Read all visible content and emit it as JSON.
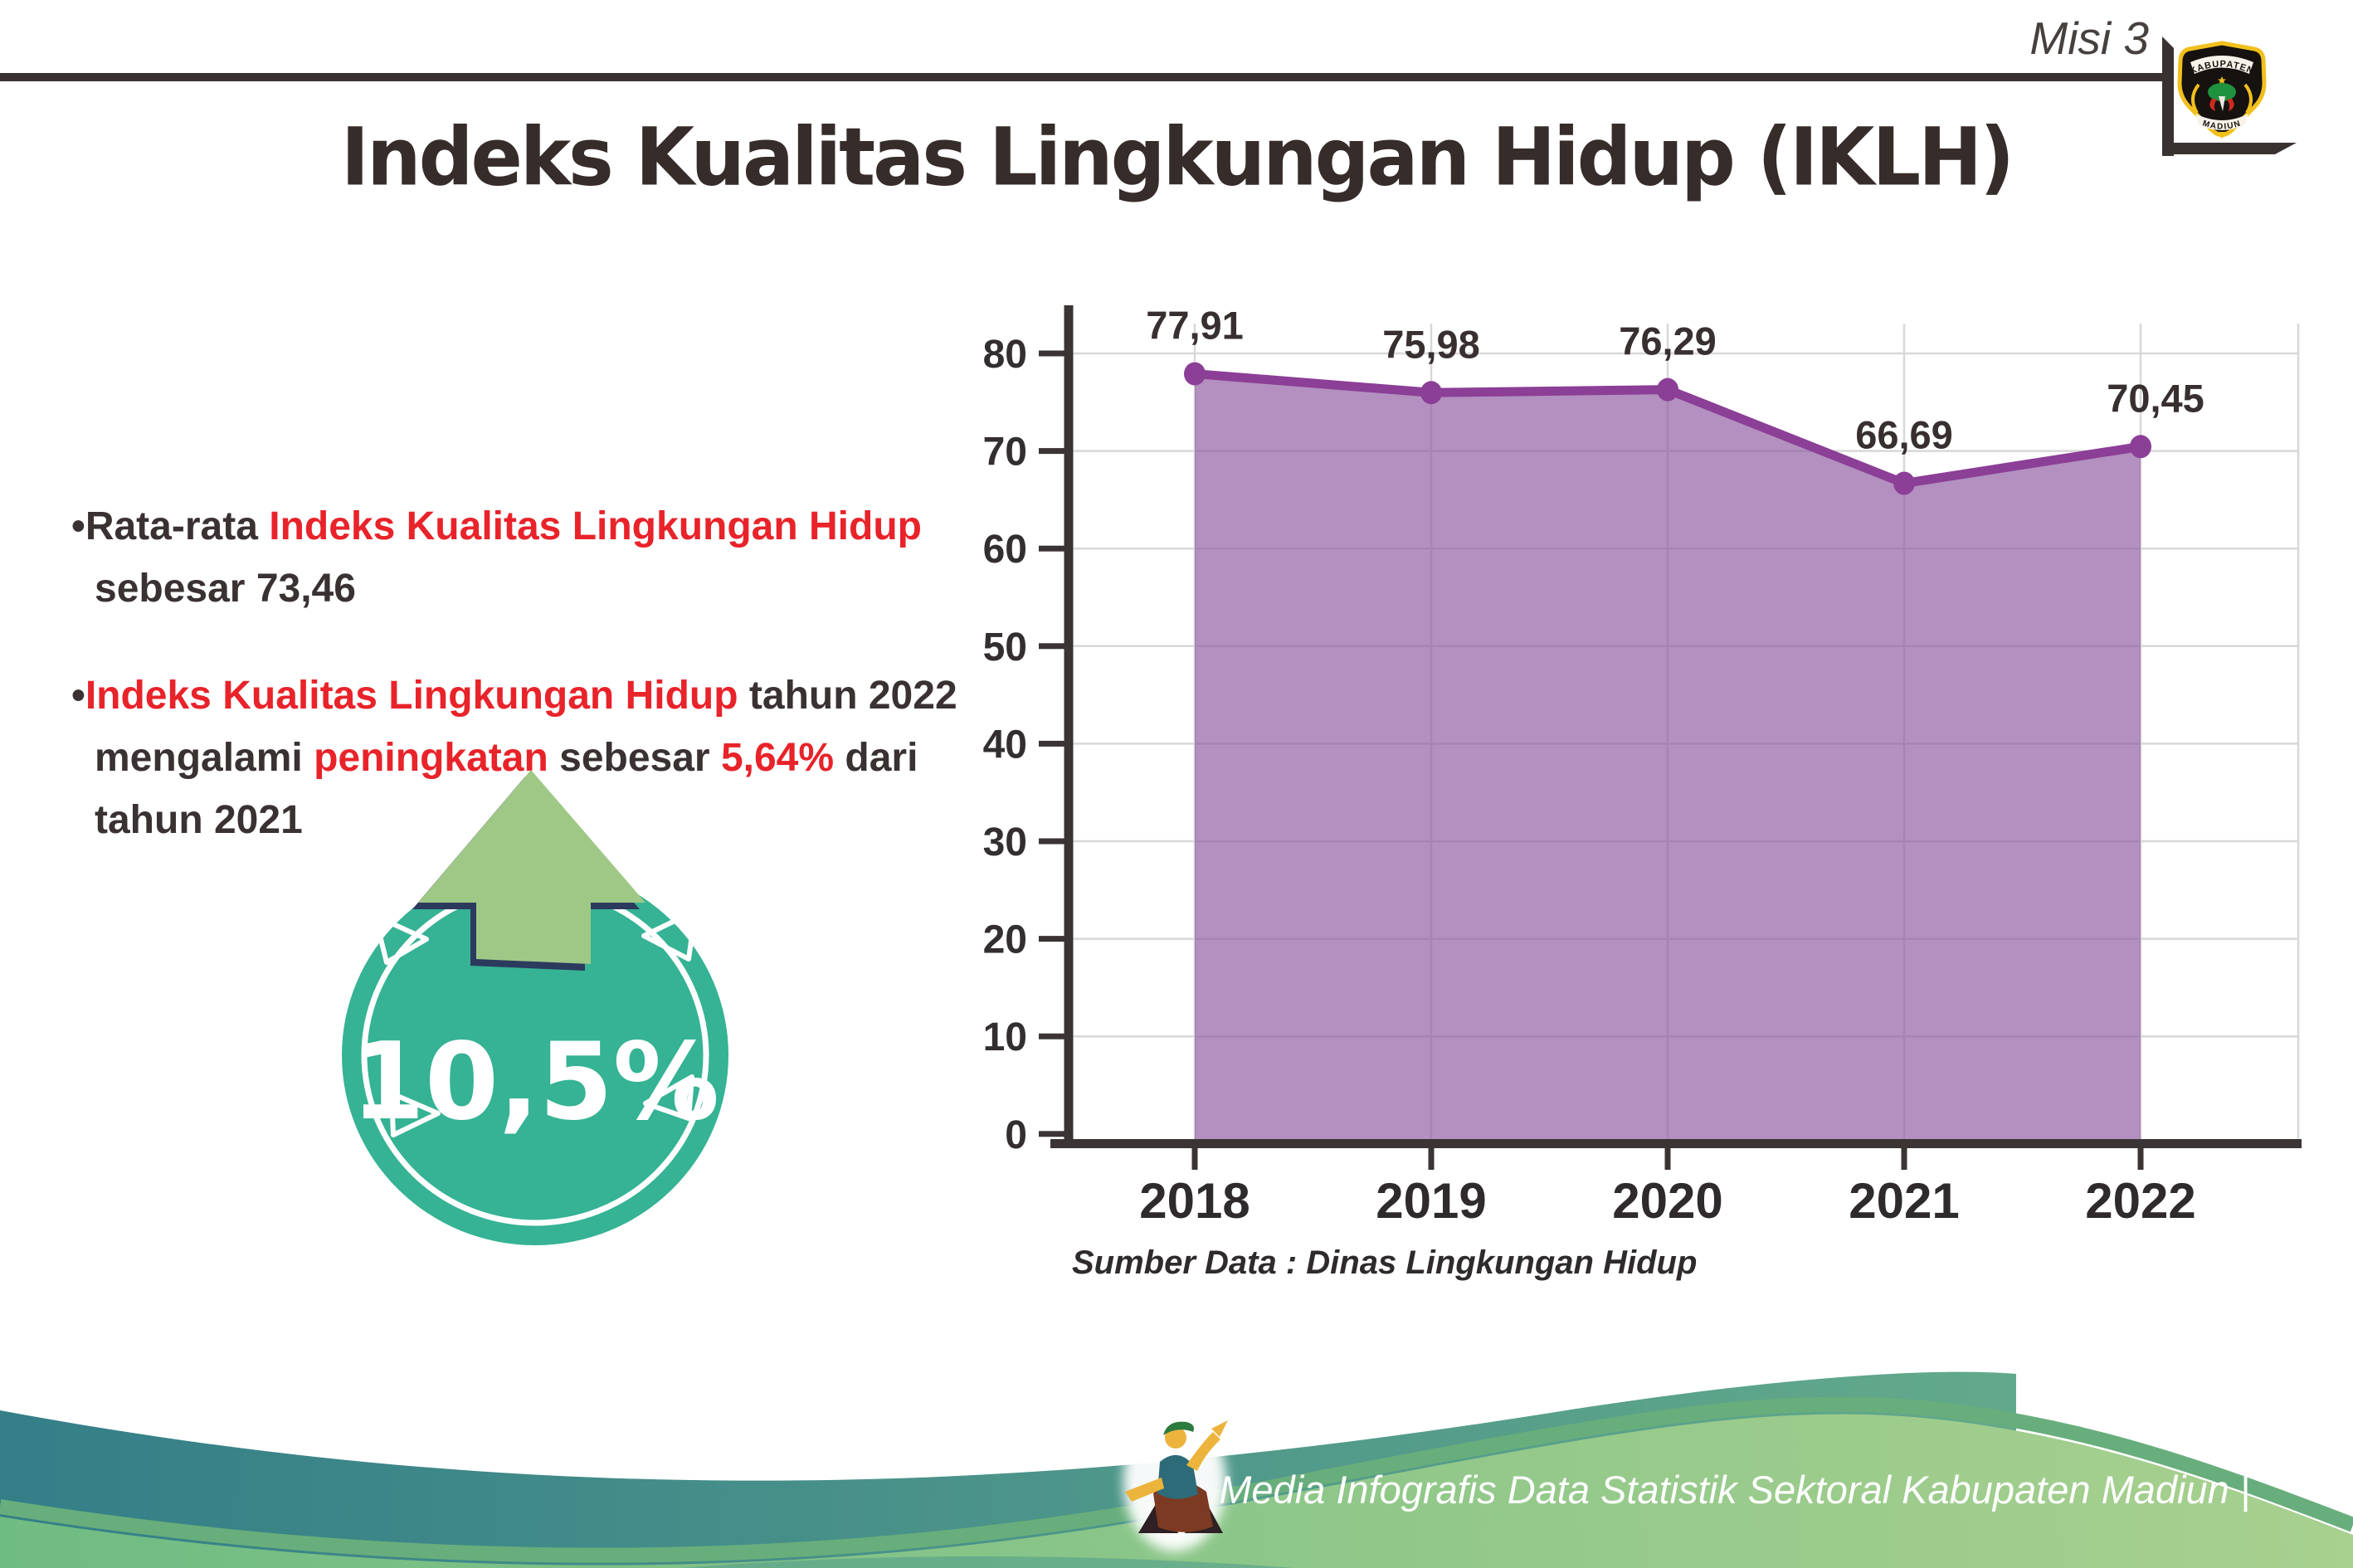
{
  "header": {
    "misi": "Misi 3",
    "logo": {
      "top_text": "KABUPATEN",
      "bottom_text": "MADIUN"
    }
  },
  "title": "Indeks Kualitas Lingkungan Hidup (IKLH)",
  "insights": {
    "bullet1": {
      "bullet": "•",
      "pre": "Rata-rata ",
      "highlight": "Indeks Kualitas Lingkungan Hidup",
      "post": " sebesar 73,46"
    },
    "bullet2": {
      "bullet": "•",
      "h1": "Indeks Kualitas Lingkungan Hidup",
      "t1": " tahun 2022 mengalami ",
      "h2": "peningkatan",
      "t2": " sebesar ",
      "h3": "5,64%",
      "t3": " dari tahun 2021"
    }
  },
  "badge": {
    "value": "10,5%",
    "circle_color": "#35b394",
    "arrow_color": "#9fc887",
    "arrow_outline": "#2c3a5e"
  },
  "chart_data": {
    "type": "area",
    "categories": [
      "2018",
      "2019",
      "2020",
      "2021",
      "2022"
    ],
    "values": [
      77.91,
      75.98,
      76.29,
      66.69,
      70.45
    ],
    "value_labels": [
      "77,91",
      "75,98",
      "76,29",
      "66,69",
      "70,45"
    ],
    "title": "",
    "xlabel": "",
    "ylabel": "",
    "ylim": [
      0,
      80
    ],
    "ytick_step": 10,
    "grid": true,
    "legend": "none",
    "line_color": "#8b3f96",
    "dot_color": "#8b3f96",
    "fill_color": "#8f5ca0",
    "fill_opacity": 0.68,
    "axis_color": "#3b3435",
    "grid_color": "#d8d8d8",
    "label_color": "#382f30"
  },
  "source_note": "Sumber Data : Dinas Lingkungan Hidup",
  "footer": {
    "caption": "Media Infografis Data Statistik Sektoral Kabupaten Madiun |",
    "teal_start": "#347e88",
    "teal_end": "#62a98b",
    "green_start": "#6fbc83",
    "green_end": "#a8d08f"
  }
}
